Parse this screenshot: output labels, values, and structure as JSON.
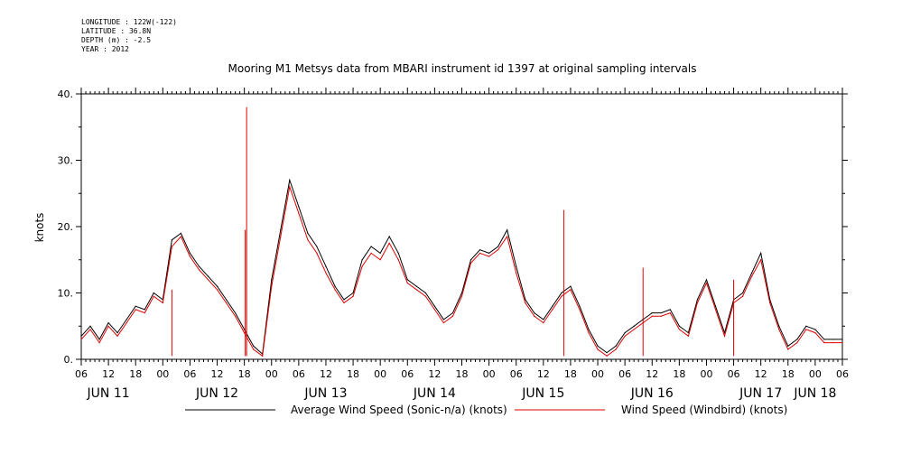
{
  "meta": {
    "longitude": "LONGITUDE : 122W(-122)",
    "latitude": "LATITUDE : 36.8N",
    "depth": "DEPTH (m) : -2.5",
    "year": "YEAR : 2012"
  },
  "chart_data": {
    "type": "line",
    "title": "Mooring M1 Metsys data from MBARI instrument id 1397 at original sampling intervals",
    "ylabel": "knots",
    "xlabel": "",
    "ylim": [
      0,
      40
    ],
    "yticks": [
      0,
      10,
      20,
      30,
      40
    ],
    "ytick_labels": [
      "0.",
      "10.",
      "20.",
      "30.",
      "40."
    ],
    "x_unit": "hours since JUN 11 00:00 (2012)",
    "xlim": [
      6,
      174
    ],
    "xtick_labels": [
      "06",
      "12",
      "18",
      "00",
      "06",
      "12",
      "18",
      "00",
      "06",
      "12",
      "18",
      "00",
      "06",
      "12",
      "18",
      "00",
      "06",
      "12",
      "18",
      "00",
      "06",
      "12",
      "18",
      "00",
      "06",
      "12",
      "18",
      "00",
      "06"
    ],
    "day_labels": [
      "JUN 11",
      "JUN 12",
      "JUN 13",
      "JUN 14",
      "JUN 15",
      "JUN 16",
      "JUN 17",
      "JUN 18"
    ],
    "grid": false,
    "legend_position": "bottom",
    "colors": {
      "sonic": "#000000",
      "windbird": "#e00000"
    },
    "series": [
      {
        "name": "Average Wind Speed (Sonic-n/a) (knots)",
        "x": [
          6,
          8,
          10,
          12,
          14,
          16,
          18,
          20,
          22,
          24,
          26,
          28,
          30,
          32,
          34,
          36,
          38,
          40,
          42,
          44,
          46,
          48,
          50,
          52,
          54,
          56,
          58,
          60,
          62,
          64,
          66,
          68,
          70,
          72,
          74,
          76,
          78,
          80,
          82,
          84,
          86,
          88,
          90,
          92,
          94,
          96,
          98,
          100,
          102,
          104,
          106,
          108,
          110,
          112,
          114,
          116,
          118,
          120,
          122,
          124,
          126,
          128,
          130,
          132,
          134,
          136,
          138,
          140,
          142,
          144,
          146,
          148,
          150,
          152,
          154,
          156,
          158,
          160,
          162,
          164,
          166,
          168,
          170,
          172,
          174
        ],
        "y": [
          3.5,
          5,
          3,
          5.5,
          4,
          6,
          8,
          7.5,
          10,
          9,
          18,
          19,
          16,
          14,
          12.5,
          11,
          9,
          7,
          4.5,
          2,
          0.8,
          12,
          19.5,
          27,
          23,
          19,
          17,
          14,
          11,
          9,
          10,
          15,
          17,
          16,
          18.5,
          16,
          12,
          11,
          10,
          8,
          6,
          7,
          10,
          15,
          16.5,
          16,
          17,
          19.5,
          14,
          9,
          7,
          6,
          8,
          10,
          11,
          8,
          4.5,
          2,
          1,
          2,
          4,
          5,
          6,
          7,
          7,
          7.5,
          5,
          4,
          9,
          12,
          8,
          4,
          9,
          10,
          13,
          16,
          9,
          5,
          2,
          3,
          5,
          4.5,
          3,
          3,
          3
        ]
      },
      {
        "name": "Wind Speed (Windbird) (knots)",
        "x": [
          6,
          8,
          10,
          12,
          14,
          16,
          18,
          20,
          22,
          24,
          26,
          28,
          30,
          32,
          34,
          36,
          38,
          40,
          42,
          44,
          46,
          48,
          50,
          52,
          54,
          56,
          58,
          60,
          62,
          64,
          66,
          68,
          70,
          72,
          74,
          76,
          78,
          80,
          82,
          84,
          86,
          88,
          90,
          92,
          94,
          96,
          98,
          100,
          102,
          104,
          106,
          108,
          110,
          112,
          114,
          116,
          118,
          120,
          122,
          124,
          126,
          128,
          130,
          132,
          134,
          136,
          138,
          140,
          142,
          144,
          146,
          148,
          150,
          152,
          154,
          156,
          158,
          160,
          162,
          164,
          166,
          168,
          170,
          172,
          174
        ],
        "y": [
          3,
          4.5,
          2.5,
          5,
          3.5,
          5.5,
          7.5,
          7,
          9.5,
          8.5,
          17,
          18.5,
          15.5,
          13.5,
          12,
          10.5,
          8.5,
          6.5,
          4,
          1.5,
          0.5,
          11,
          18.5,
          26,
          22,
          18,
          16,
          13,
          10.5,
          8.5,
          9.5,
          14,
          16,
          15,
          17.5,
          15,
          11.5,
          10.5,
          9.5,
          7.5,
          5.5,
          6.5,
          9.5,
          14.5,
          16,
          15.5,
          16.5,
          18.5,
          13,
          8.5,
          6.5,
          5.5,
          7.5,
          9.5,
          10.5,
          7.5,
          4,
          1.5,
          0.5,
          1.5,
          3.5,
          4.5,
          5.5,
          6.5,
          6.5,
          7,
          4.5,
          3.5,
          8.5,
          11.5,
          7.5,
          3.5,
          8.5,
          9.5,
          12.5,
          15,
          8.5,
          4.5,
          1.5,
          2.5,
          4.5,
          4,
          2.5,
          2.5,
          2.5
        ]
      }
    ],
    "spikes": [
      {
        "series": "Wind Speed (Windbird) (knots)",
        "x": 42.5,
        "y": 38
      },
      {
        "series": "Wind Speed (Windbird) (knots)",
        "x": 42.2,
        "y": 19.5
      },
      {
        "series": "Wind Speed (Windbird) (knots)",
        "x": 112.5,
        "y": 22.5
      },
      {
        "series": "Wind Speed (Windbird) (knots)",
        "x": 130,
        "y": 13.8
      },
      {
        "series": "Wind Speed (Windbird) (knots)",
        "x": 26,
        "y": 10.5
      },
      {
        "series": "Wind Speed (Windbird) (knots)",
        "x": 150,
        "y": 12
      }
    ]
  }
}
